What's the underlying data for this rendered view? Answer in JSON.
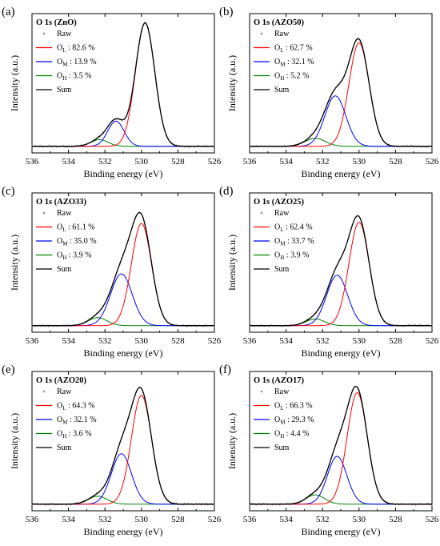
{
  "figure": {
    "xlabel": "Binding energy (eV)",
    "ylabel": "Intensity (a.u.)",
    "x_ticks": [
      536,
      534,
      532,
      530,
      528,
      526
    ],
    "legend": {
      "raw": "Raw",
      "sum": "Sum"
    },
    "colors": {
      "raw": "#9a9a9a",
      "OL": "#ff0000",
      "OM": "#0000ff",
      "OH": "#008000",
      "sum": "#000000"
    },
    "component_labels": {
      "OL": {
        "main": "O",
        "sub": "L"
      },
      "OM": {
        "main": "O",
        "sub": "M"
      },
      "OH": {
        "main": "O",
        "sub": "H"
      }
    }
  },
  "chart_data": [
    {
      "type": "line",
      "panel_label": "(a)",
      "title": "O 1s (ZnO)",
      "xlabel": "Binding energy (eV)",
      "ylabel": "Intensity (a.u.)",
      "xlim": [
        536,
        526
      ],
      "x_reversed": true,
      "legend_position": "top-left",
      "components": [
        {
          "name": "OL",
          "legend": " : 82.6 %",
          "center": 529.8,
          "fwhm": 1.25,
          "height": 0.93
        },
        {
          "name": "OM",
          "legend": " : 13.9 %",
          "center": 531.4,
          "fwhm": 1.05,
          "height": 0.19
        },
        {
          "name": "OH",
          "legend": " : 3.5 %",
          "center": 532.3,
          "fwhm": 1.1,
          "height": 0.05
        }
      ]
    },
    {
      "type": "line",
      "panel_label": "(b)",
      "title": "O 1s (AZO50)",
      "xlabel": "Binding energy (eV)",
      "ylabel": "Intensity (a.u.)",
      "xlim": [
        536,
        526
      ],
      "x_reversed": true,
      "legend_position": "top-left",
      "components": [
        {
          "name": "OL",
          "legend": " : 62.7 %",
          "center": 530.0,
          "fwhm": 1.3,
          "height": 0.78
        },
        {
          "name": "OM",
          "legend": " : 32.1 %",
          "center": 531.3,
          "fwhm": 1.35,
          "height": 0.38
        },
        {
          "name": "OH",
          "legend": " : 5.2 %",
          "center": 532.4,
          "fwhm": 1.3,
          "height": 0.06
        }
      ]
    },
    {
      "type": "line",
      "panel_label": "(c)",
      "title": "O 1s (AZO33)",
      "xlabel": "Binding energy (eV)",
      "ylabel": "Intensity (a.u.)",
      "xlim": [
        536,
        526
      ],
      "x_reversed": true,
      "legend_position": "top-left",
      "components": [
        {
          "name": "OL",
          "legend": " : 61.1 %",
          "center": 530.0,
          "fwhm": 1.3,
          "height": 0.77
        },
        {
          "name": "OM",
          "legend": " : 35.0 %",
          "center": 531.1,
          "fwhm": 1.4,
          "height": 0.39
        },
        {
          "name": "OH",
          "legend": " : 3.9 %",
          "center": 532.4,
          "fwhm": 1.2,
          "height": 0.06
        }
      ]
    },
    {
      "type": "line",
      "panel_label": "(d)",
      "title": "O 1s (AZO25)",
      "xlabel": "Binding energy (eV)",
      "ylabel": "Intensity (a.u.)",
      "xlim": [
        536,
        526
      ],
      "x_reversed": true,
      "legend_position": "top-left",
      "components": [
        {
          "name": "OL",
          "legend": " : 62.4 %",
          "center": 530.0,
          "fwhm": 1.3,
          "height": 0.78
        },
        {
          "name": "OM",
          "legend": " : 33.7 %",
          "center": 531.2,
          "fwhm": 1.35,
          "height": 0.38
        },
        {
          "name": "OH",
          "legend": " : 3.9 %",
          "center": 532.4,
          "fwhm": 1.2,
          "height": 0.05
        }
      ]
    },
    {
      "type": "line",
      "panel_label": "(e)",
      "title": "O 1s (AZO20)",
      "xlabel": "Binding energy (eV)",
      "ylabel": "Intensity (a.u.)",
      "xlim": [
        536,
        526
      ],
      "x_reversed": true,
      "legend_position": "top-left",
      "components": [
        {
          "name": "OL",
          "legend": " : 64.3 %",
          "center": 530.0,
          "fwhm": 1.3,
          "height": 0.82
        },
        {
          "name": "OM",
          "legend": " : 32.1 %",
          "center": 531.1,
          "fwhm": 1.3,
          "height": 0.38
        },
        {
          "name": "OH",
          "legend": " : 3.6 %",
          "center": 532.4,
          "fwhm": 1.2,
          "height": 0.06
        }
      ]
    },
    {
      "type": "line",
      "panel_label": "(f)",
      "title": "O 1s (AZO17)",
      "xlabel": "Binding energy (eV)",
      "ylabel": "Intensity (a.u.)",
      "xlim": [
        536,
        526
      ],
      "x_reversed": true,
      "legend_position": "top-left",
      "components": [
        {
          "name": "OL",
          "legend": " : 66.3 %",
          "center": 530.1,
          "fwhm": 1.3,
          "height": 0.84
        },
        {
          "name": "OM",
          "legend": " : 29.3 %",
          "center": 531.2,
          "fwhm": 1.25,
          "height": 0.36
        },
        {
          "name": "OH",
          "legend": " : 4.4 %",
          "center": 532.4,
          "fwhm": 1.2,
          "height": 0.07
        }
      ]
    }
  ]
}
